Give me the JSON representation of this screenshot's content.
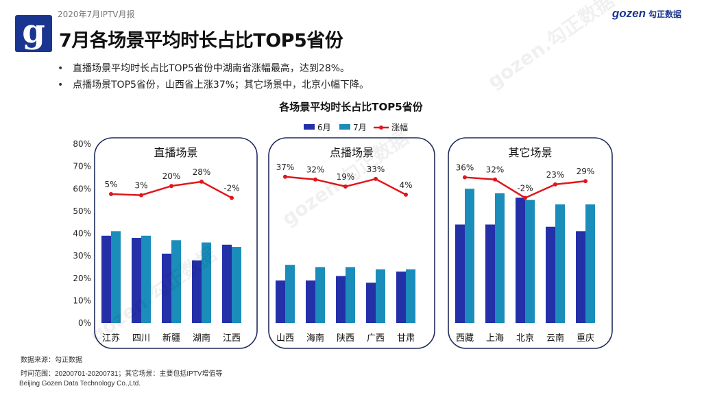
{
  "header": {
    "report_label": "2020年7月IPTV月报",
    "title": "7月各场景平均时长占比TOP5省份",
    "logo_letter": "g",
    "brand_latin": "gozen",
    "brand_cn": "勾正数据"
  },
  "bullets": [
    "直播场景平均时长占比TOP5省份中湖南省涨幅最高，达到28%。",
    "点播场景TOP5省份，山西省上涨37%；其它场景中，北京小幅下降。"
  ],
  "footer": {
    "source": "数据来源：勾正数据",
    "period": "时间范围：20200701-20200731；其它场景：主要包括IPTV增值等",
    "company": "Beijing Gozen Data Technology Co.,Ltd."
  },
  "colors": {
    "june": "#2330a8",
    "july": "#1a8dbb",
    "growth": "#e0161b",
    "panel_border": "#1f2a5a",
    "brand": "#1a3590"
  },
  "chart_data": {
    "type": "bar",
    "title": "各场景平均时长占比TOP5省份",
    "legend": [
      "6月",
      "7月",
      "涨幅"
    ],
    "legend_position": "top-center",
    "y_ticks": [
      "0%",
      "10%",
      "20%",
      "30%",
      "40%",
      "50%",
      "60%",
      "70%",
      "80%"
    ],
    "ylim": [
      0,
      80
    ],
    "growth_line_note": "涨幅 line plotted on separate axis; values shown as labels",
    "panels": [
      {
        "name": "直播场景",
        "categories": [
          "江苏",
          "四川",
          "新疆",
          "湖南",
          "江西"
        ],
        "june": [
          39,
          38,
          31,
          28,
          35
        ],
        "july": [
          41,
          39,
          37,
          36,
          34
        ],
        "growth": [
          "5%",
          "3%",
          "20%",
          "28%",
          "-2%"
        ],
        "growth_values": [
          5,
          3,
          20,
          28,
          -2
        ]
      },
      {
        "name": "点播场景",
        "categories": [
          "山西",
          "海南",
          "陕西",
          "广西",
          "甘肃"
        ],
        "june": [
          19,
          19,
          21,
          18,
          23
        ],
        "july": [
          26,
          25,
          25,
          24,
          24
        ],
        "growth": [
          "37%",
          "32%",
          "19%",
          "33%",
          "4%"
        ],
        "growth_values": [
          37,
          32,
          19,
          33,
          4
        ]
      },
      {
        "name": "其它场景",
        "categories": [
          "西藏",
          "上海",
          "北京",
          "云南",
          "重庆"
        ],
        "june": [
          44,
          44,
          56,
          43,
          41
        ],
        "july": [
          60,
          58,
          55,
          53,
          53
        ],
        "growth": [
          "36%",
          "32%",
          "-2%",
          "23%",
          "29%"
        ],
        "growth_values": [
          36,
          32,
          -2,
          23,
          29
        ]
      }
    ]
  }
}
